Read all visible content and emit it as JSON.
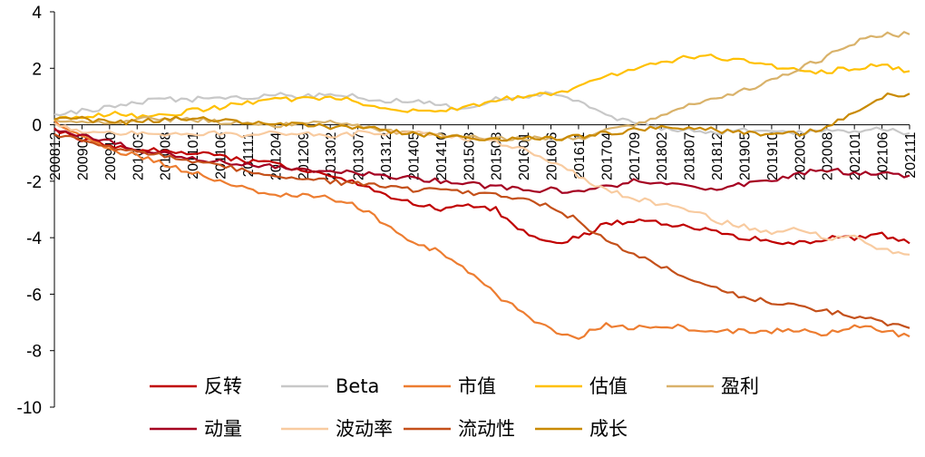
{
  "chart_data": {
    "type": "line",
    "title": "",
    "xlabel": "",
    "ylabel": "",
    "ylim": [
      -10,
      4
    ],
    "yticks": [
      4,
      2,
      0,
      -2,
      -4,
      -6,
      -8,
      -10
    ],
    "grid": false,
    "legend_position": "bottom",
    "x_ticks": [
      "200812",
      "200905",
      "200910",
      "201003",
      "201008",
      "201101",
      "201106",
      "201111",
      "201204",
      "201209",
      "201302",
      "201307",
      "201312",
      "201405",
      "201410",
      "201503",
      "201508",
      "201601",
      "201606",
      "201611",
      "201704",
      "201709",
      "201802",
      "201807",
      "201812",
      "201905",
      "201910",
      "202003",
      "202008",
      "202101",
      "202106",
      "202111"
    ],
    "series": [
      {
        "name": "反转",
        "color": "#c00000",
        "key": [
          [
            0,
            -0.2
          ],
          [
            1,
            -0.5
          ],
          [
            2,
            -0.8
          ],
          [
            3,
            -0.9
          ],
          [
            4,
            -0.9
          ],
          [
            5,
            -1.0
          ],
          [
            6,
            -1.1
          ],
          [
            7,
            -1.3
          ],
          [
            8,
            -1.4
          ],
          [
            9,
            -1.6
          ],
          [
            10,
            -1.8
          ],
          [
            11,
            -2.1
          ],
          [
            12,
            -2.5
          ],
          [
            13,
            -2.8
          ],
          [
            14,
            -3.0
          ],
          [
            15,
            -2.9
          ],
          [
            16,
            -3.0
          ],
          [
            17,
            -3.8
          ],
          [
            18,
            -4.2
          ],
          [
            19,
            -4.0
          ],
          [
            20,
            -3.5
          ],
          [
            21,
            -3.4
          ],
          [
            22,
            -3.5
          ],
          [
            23,
            -3.6
          ],
          [
            24,
            -3.8
          ],
          [
            25,
            -4.0
          ],
          [
            26,
            -4.1
          ],
          [
            27,
            -4.2
          ],
          [
            28,
            -4.0
          ],
          [
            29,
            -4.0
          ],
          [
            30,
            -3.9
          ],
          [
            31,
            -4.2
          ]
        ]
      },
      {
        "name": "Beta",
        "color": "#c8c8c8",
        "key": [
          [
            0,
            0.3
          ],
          [
            1,
            0.5
          ],
          [
            2,
            0.6
          ],
          [
            3,
            0.8
          ],
          [
            4,
            0.9
          ],
          [
            5,
            0.9
          ],
          [
            6,
            1.0
          ],
          [
            7,
            0.9
          ],
          [
            8,
            1.1
          ],
          [
            9,
            1.0
          ],
          [
            10,
            1.1
          ],
          [
            11,
            1.0
          ],
          [
            12,
            0.8
          ],
          [
            13,
            0.9
          ],
          [
            14,
            0.7
          ],
          [
            15,
            0.5
          ],
          [
            16,
            0.9
          ],
          [
            17,
            1.0
          ],
          [
            18,
            1.1
          ],
          [
            19,
            0.8
          ],
          [
            20,
            0.3
          ],
          [
            21,
            0.1
          ],
          [
            22,
            -0.1
          ],
          [
            23,
            -0.2
          ],
          [
            24,
            -0.3
          ],
          [
            25,
            -0.2
          ],
          [
            26,
            -0.3
          ],
          [
            27,
            -0.3
          ],
          [
            28,
            -0.2
          ],
          [
            29,
            -0.2
          ],
          [
            30,
            -0.1
          ],
          [
            31,
            -0.3
          ]
        ]
      },
      {
        "name": "市值",
        "color": "#ed7d31",
        "key": [
          [
            0,
            0.1
          ],
          [
            1,
            -0.4
          ],
          [
            2,
            -0.9
          ],
          [
            3,
            -1.1
          ],
          [
            4,
            -1.4
          ],
          [
            5,
            -1.7
          ],
          [
            6,
            -2.0
          ],
          [
            7,
            -2.3
          ],
          [
            8,
            -2.5
          ],
          [
            9,
            -2.5
          ],
          [
            10,
            -2.6
          ],
          [
            11,
            -2.9
          ],
          [
            12,
            -3.5
          ],
          [
            13,
            -4.2
          ],
          [
            14,
            -4.5
          ],
          [
            15,
            -5.2
          ],
          [
            16,
            -6.0
          ],
          [
            17,
            -6.7
          ],
          [
            18,
            -7.3
          ],
          [
            19,
            -7.5
          ],
          [
            20,
            -7.1
          ],
          [
            21,
            -7.2
          ],
          [
            22,
            -7.1
          ],
          [
            23,
            -7.2
          ],
          [
            24,
            -7.3
          ],
          [
            25,
            -7.3
          ],
          [
            26,
            -7.3
          ],
          [
            27,
            -7.3
          ],
          [
            28,
            -7.4
          ],
          [
            29,
            -7.1
          ],
          [
            30,
            -7.3
          ],
          [
            31,
            -7.5
          ]
        ]
      },
      {
        "name": "估值",
        "color": "#ffc000",
        "key": [
          [
            0,
            0.2
          ],
          [
            1,
            0.3
          ],
          [
            2,
            0.4
          ],
          [
            3,
            0.3
          ],
          [
            4,
            0.3
          ],
          [
            5,
            0.5
          ],
          [
            6,
            0.6
          ],
          [
            7,
            0.8
          ],
          [
            8,
            0.9
          ],
          [
            9,
            0.9
          ],
          [
            10,
            1.0
          ],
          [
            11,
            0.8
          ],
          [
            12,
            0.6
          ],
          [
            13,
            0.5
          ],
          [
            14,
            0.5
          ],
          [
            15,
            0.6
          ],
          [
            16,
            0.9
          ],
          [
            17,
            1.0
          ],
          [
            18,
            1.1
          ],
          [
            19,
            1.3
          ],
          [
            20,
            1.7
          ],
          [
            21,
            2.0
          ],
          [
            22,
            2.2
          ],
          [
            23,
            2.4
          ],
          [
            24,
            2.4
          ],
          [
            25,
            2.3
          ],
          [
            26,
            2.1
          ],
          [
            27,
            1.9
          ],
          [
            28,
            1.9
          ],
          [
            29,
            2.0
          ],
          [
            30,
            2.1
          ],
          [
            31,
            1.9
          ]
        ]
      },
      {
        "name": "盈利",
        "color": "#d9b26a",
        "key": [
          [
            0,
            0.1
          ],
          [
            1,
            0.1
          ],
          [
            2,
            0.1
          ],
          [
            3,
            0.2
          ],
          [
            4,
            0.2
          ],
          [
            5,
            0.2
          ],
          [
            6,
            0.1
          ],
          [
            7,
            0.0
          ],
          [
            8,
            0.0
          ],
          [
            9,
            0.0
          ],
          [
            10,
            0.1
          ],
          [
            11,
            0.0
          ],
          [
            12,
            -0.2
          ],
          [
            13,
            -0.3
          ],
          [
            14,
            -0.4
          ],
          [
            15,
            -0.4
          ],
          [
            16,
            -0.5
          ],
          [
            17,
            -0.5
          ],
          [
            18,
            -0.5
          ],
          [
            19,
            -0.5
          ],
          [
            20,
            -0.2
          ],
          [
            21,
            0.0
          ],
          [
            22,
            0.3
          ],
          [
            23,
            0.7
          ],
          [
            24,
            0.9
          ],
          [
            25,
            1.2
          ],
          [
            26,
            1.6
          ],
          [
            27,
            2.0
          ],
          [
            28,
            2.4
          ],
          [
            29,
            2.9
          ],
          [
            30,
            3.2
          ],
          [
            31,
            3.2
          ]
        ]
      },
      {
        "name": "动量",
        "color": "#a50021",
        "key": [
          [
            0,
            -0.1
          ],
          [
            1,
            -0.4
          ],
          [
            2,
            -0.6
          ],
          [
            3,
            -0.9
          ],
          [
            4,
            -1.0
          ],
          [
            5,
            -1.2
          ],
          [
            6,
            -1.3
          ],
          [
            7,
            -1.4
          ],
          [
            8,
            -1.5
          ],
          [
            9,
            -1.6
          ],
          [
            10,
            -1.7
          ],
          [
            11,
            -1.7
          ],
          [
            12,
            -1.8
          ],
          [
            13,
            -1.9
          ],
          [
            14,
            -2.0
          ],
          [
            15,
            -2.1
          ],
          [
            16,
            -2.2
          ],
          [
            17,
            -2.3
          ],
          [
            18,
            -2.3
          ],
          [
            19,
            -2.4
          ],
          [
            20,
            -2.2
          ],
          [
            21,
            -2.0
          ],
          [
            22,
            -2.1
          ],
          [
            23,
            -2.1
          ],
          [
            24,
            -2.3
          ],
          [
            25,
            -2.1
          ],
          [
            26,
            -2.0
          ],
          [
            27,
            -1.7
          ],
          [
            28,
            -1.6
          ],
          [
            29,
            -1.7
          ],
          [
            30,
            -1.7
          ],
          [
            31,
            -1.8
          ]
        ]
      },
      {
        "name": "波动率",
        "color": "#f8cba0",
        "key": [
          [
            0,
            0.0
          ],
          [
            1,
            -0.2
          ],
          [
            2,
            -0.3
          ],
          [
            3,
            -0.3
          ],
          [
            4,
            -0.4
          ],
          [
            5,
            -0.3
          ],
          [
            6,
            -0.3
          ],
          [
            7,
            -0.4
          ],
          [
            8,
            -0.3
          ],
          [
            9,
            -0.3
          ],
          [
            10,
            -0.4
          ],
          [
            11,
            -0.3
          ],
          [
            12,
            -0.3
          ],
          [
            13,
            -0.3
          ],
          [
            14,
            -0.4
          ],
          [
            15,
            -0.5
          ],
          [
            16,
            -0.6
          ],
          [
            17,
            -0.9
          ],
          [
            18,
            -1.3
          ],
          [
            19,
            -1.8
          ],
          [
            20,
            -2.3
          ],
          [
            21,
            -2.6
          ],
          [
            22,
            -2.8
          ],
          [
            23,
            -3.0
          ],
          [
            24,
            -3.4
          ],
          [
            25,
            -3.6
          ],
          [
            26,
            -3.8
          ],
          [
            27,
            -3.7
          ],
          [
            28,
            -4.0
          ],
          [
            29,
            -4.0
          ],
          [
            30,
            -4.4
          ],
          [
            31,
            -4.6
          ]
        ]
      },
      {
        "name": "流动性",
        "color": "#c4501a",
        "key": [
          [
            0,
            -0.3
          ],
          [
            1,
            -0.6
          ],
          [
            2,
            -0.8
          ],
          [
            3,
            -1.0
          ],
          [
            4,
            -1.1
          ],
          [
            5,
            -1.3
          ],
          [
            6,
            -1.5
          ],
          [
            7,
            -1.6
          ],
          [
            8,
            -1.8
          ],
          [
            9,
            -1.9
          ],
          [
            10,
            -2.0
          ],
          [
            11,
            -2.1
          ],
          [
            12,
            -2.2
          ],
          [
            13,
            -2.3
          ],
          [
            14,
            -2.3
          ],
          [
            15,
            -2.4
          ],
          [
            16,
            -2.5
          ],
          [
            17,
            -2.6
          ],
          [
            18,
            -2.9
          ],
          [
            19,
            -3.4
          ],
          [
            20,
            -4.1
          ],
          [
            21,
            -4.6
          ],
          [
            22,
            -5.0
          ],
          [
            23,
            -5.4
          ],
          [
            24,
            -5.8
          ],
          [
            25,
            -6.1
          ],
          [
            26,
            -6.3
          ],
          [
            27,
            -6.4
          ],
          [
            28,
            -6.6
          ],
          [
            29,
            -6.8
          ],
          [
            30,
            -7.0
          ],
          [
            31,
            -7.2
          ]
        ]
      },
      {
        "name": "成长",
        "color": "#c98a00",
        "key": [
          [
            0,
            0.2
          ],
          [
            1,
            0.2
          ],
          [
            2,
            0.1
          ],
          [
            3,
            0.1
          ],
          [
            4,
            0.2
          ],
          [
            5,
            0.2
          ],
          [
            6,
            0.2
          ],
          [
            7,
            0.1
          ],
          [
            8,
            0.0
          ],
          [
            9,
            0.0
          ],
          [
            10,
            -0.1
          ],
          [
            11,
            -0.1
          ],
          [
            12,
            -0.2
          ],
          [
            13,
            -0.3
          ],
          [
            14,
            -0.4
          ],
          [
            15,
            -0.5
          ],
          [
            16,
            -0.5
          ],
          [
            17,
            -0.5
          ],
          [
            18,
            -0.5
          ],
          [
            19,
            -0.4
          ],
          [
            20,
            -0.3
          ],
          [
            21,
            -0.2
          ],
          [
            22,
            -0.1
          ],
          [
            23,
            -0.1
          ],
          [
            24,
            -0.2
          ],
          [
            25,
            -0.3
          ],
          [
            26,
            -0.3
          ],
          [
            27,
            -0.3
          ],
          [
            28,
            -0.1
          ],
          [
            29,
            0.4
          ],
          [
            30,
            1.0
          ],
          [
            31,
            1.1
          ]
        ]
      }
    ]
  }
}
